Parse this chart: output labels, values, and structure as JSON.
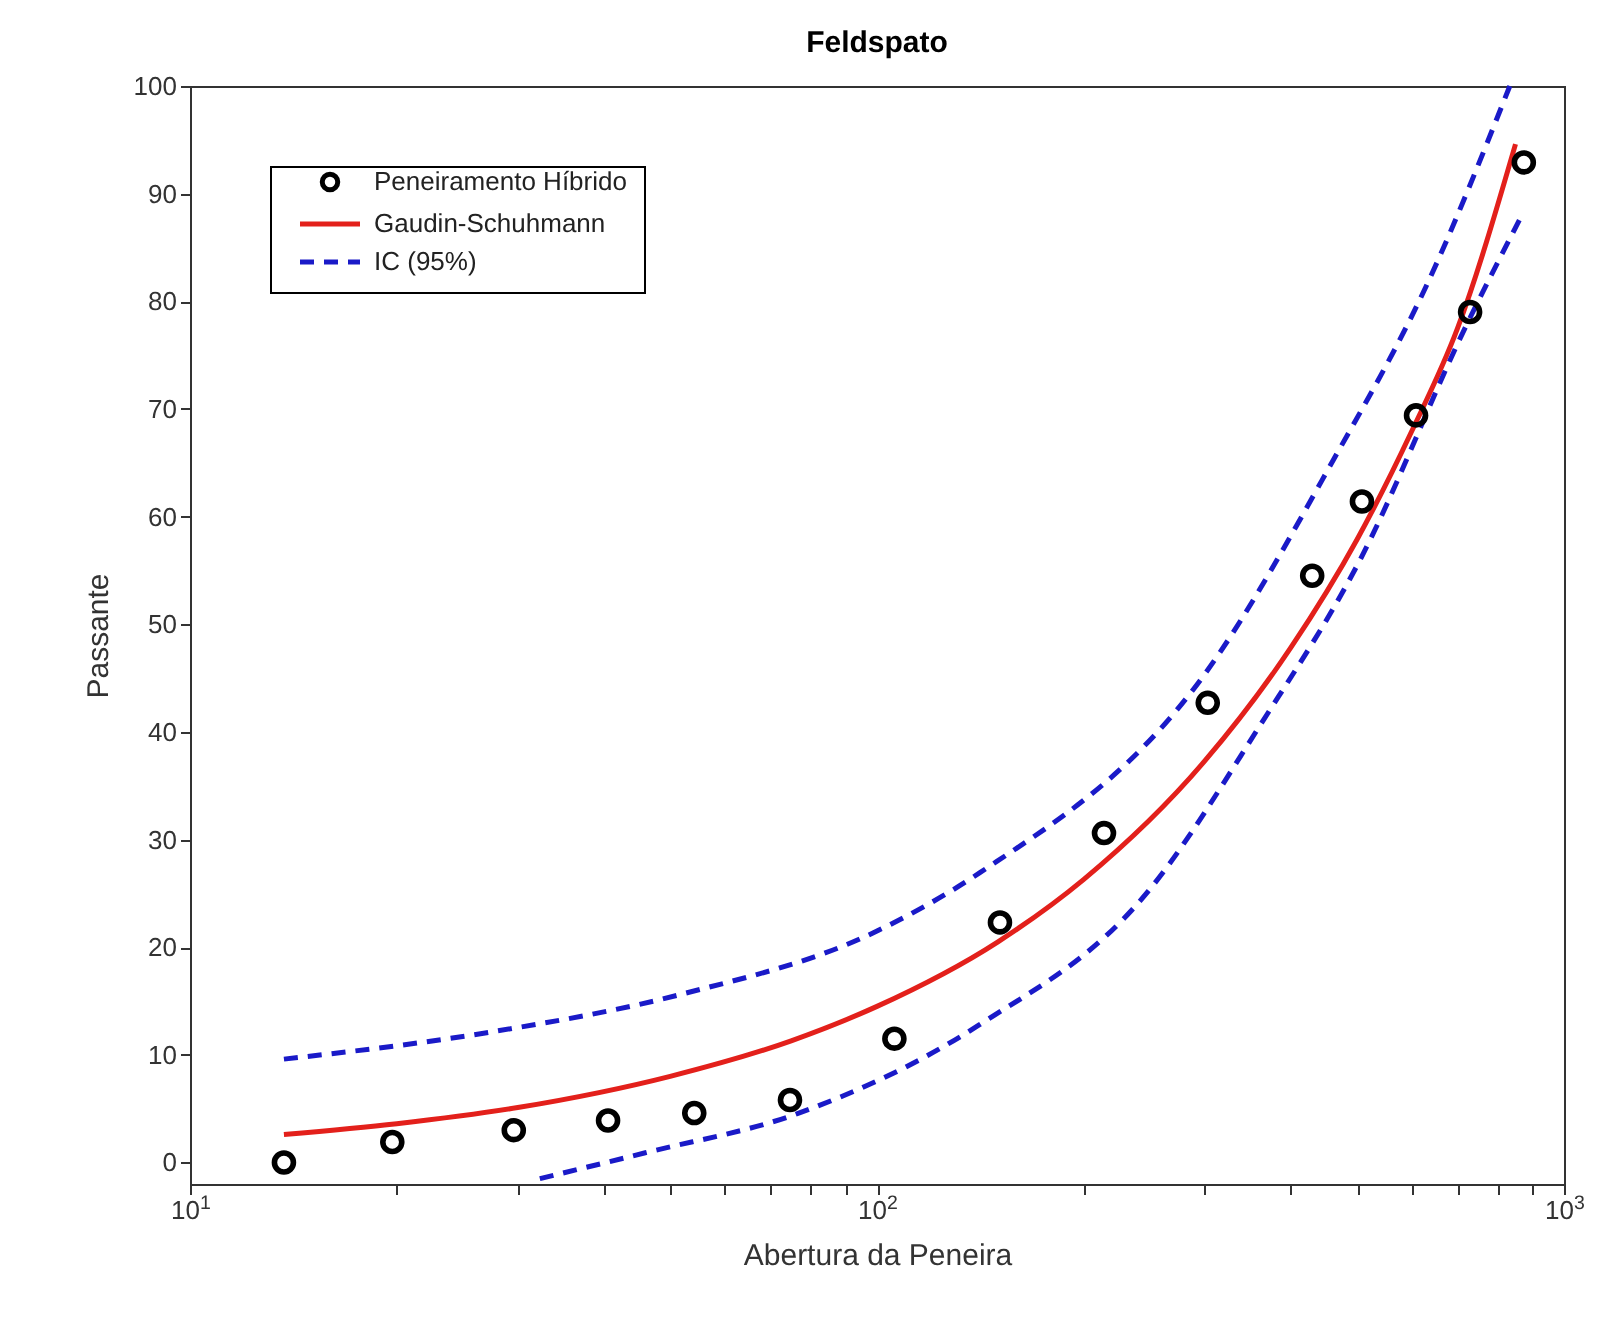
{
  "chart_data": {
    "type": "scatter",
    "title": "Feldspato",
    "xlabel": "Abertura da Peneira",
    "ylabel": "Passante",
    "log": "x",
    "grid": false,
    "legend": "top left",
    "xlim": [
      10,
      1000
    ],
    "ylim": [
      -2,
      100
    ],
    "xticks": [
      {
        "value": 10,
        "label": "10$^{1}$"
      },
      {
        "value": 20,
        "label": null
      },
      {
        "value": 30,
        "label": null
      },
      {
        "value": 40,
        "label": null
      },
      {
        "value": 50,
        "label": null
      },
      {
        "value": 60,
        "label": null
      },
      {
        "value": 70,
        "label": null
      },
      {
        "value": 80,
        "label": null
      },
      {
        "value": 90,
        "label": null
      },
      {
        "value": 100,
        "label": "10$^{2}$"
      },
      {
        "value": 200,
        "label": null
      },
      {
        "value": 300,
        "label": null
      },
      {
        "value": 400,
        "label": null
      },
      {
        "value": 500,
        "label": null
      },
      {
        "value": 600,
        "label": null
      },
      {
        "value": 700,
        "label": null
      },
      {
        "value": 800,
        "label": null
      },
      {
        "value": 900,
        "label": null
      },
      {
        "value": 1000,
        "label": "10$^{3}$"
      }
    ],
    "yticks": [
      0,
      10,
      20,
      30,
      40,
      50,
      60,
      70,
      80,
      90,
      100
    ],
    "series": [
      {
        "name": "Peneiramento Híbrido",
        "type": "scatter",
        "marker": "circle",
        "color": "#000000",
        "x": [
          13.7,
          19.7,
          29.6,
          40.6,
          54.2,
          74.7,
          106,
          151,
          214,
          303,
          430,
          508,
          609,
          730,
          874
        ],
        "values": [
          0,
          1.9,
          3,
          3.9,
          4.6,
          5.8,
          11.5,
          22.3,
          30.6,
          42.7,
          54.5,
          61.4,
          69.4,
          79,
          92.9
        ]
      },
      {
        "name": "Gaudin-Schuhmann",
        "type": "line",
        "line_style": "solid",
        "color": "#e3201b",
        "x": [
          13.7,
          20,
          30,
          50,
          75,
          100,
          150,
          200,
          300,
          400,
          500,
          600,
          700,
          850
        ],
        "values": [
          2.6,
          3.6,
          5.1,
          8,
          11.3,
          14.5,
          20.5,
          26.3,
          37.3,
          47.8,
          57.9,
          67.9,
          77.5,
          94.6
        ]
      },
      {
        "name": "IC (95%)",
        "type": "line",
        "line_style": "dashed",
        "color": "#1a1ac8",
        "x": [
          13.7,
          27.3,
          51.7,
          100,
          141,
          301,
          462,
          630,
          834
        ],
        "values": [
          9.6,
          12.1,
          15.6,
          21.5,
          26.9,
          45.5,
          65.3,
          81.4,
          100
        ]
      },
      {
        "type": "line",
        "line_style": "dashed",
        "color": "#1a1ac8",
        "x": [
          32.3,
          46,
          77.1,
          141,
          246,
          361,
          505,
          720,
          862
        ],
        "values": [
          -1.5,
          0.9,
          4.6,
          12.8,
          24.9,
          40.6,
          56,
          77.7,
          87.6
        ]
      }
    ]
  }
}
